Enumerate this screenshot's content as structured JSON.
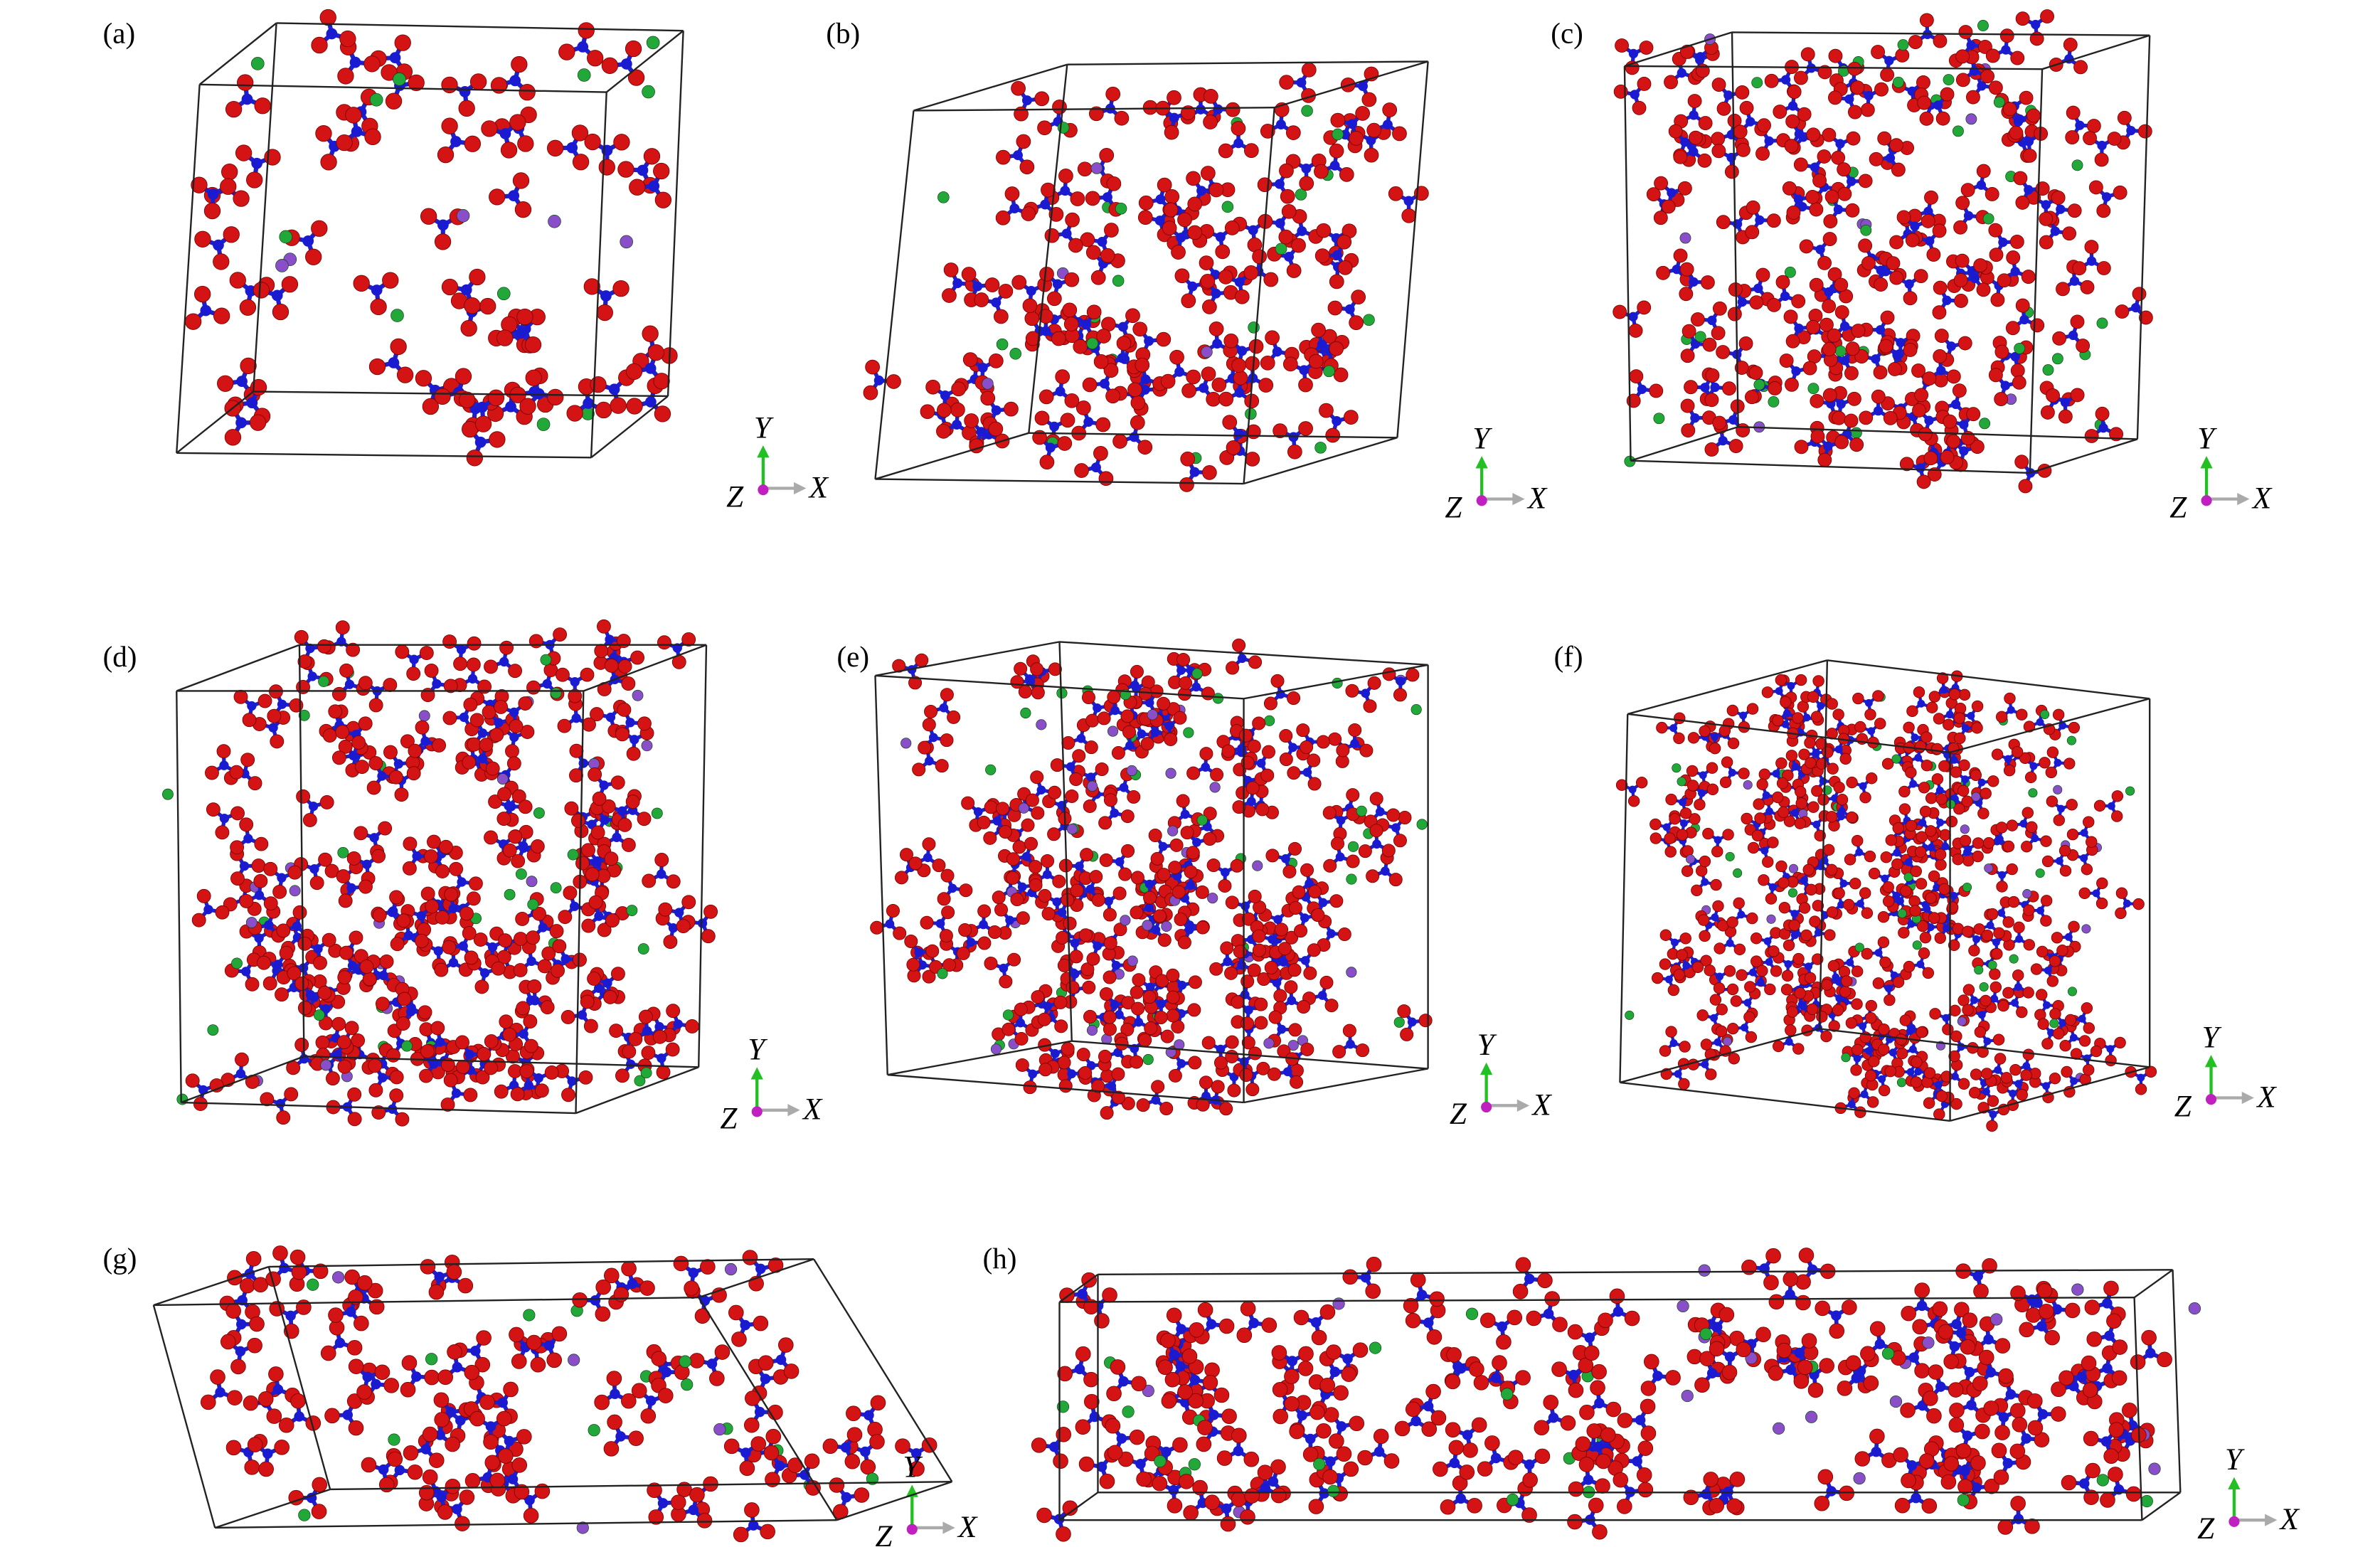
{
  "panels": [
    {
      "label": "(a)",
      "axes": {
        "y": "Y",
        "z": "Z",
        "x": "X"
      }
    },
    {
      "label": "(b)",
      "axes": {
        "y": "Y",
        "z": "Z",
        "x": "X"
      }
    },
    {
      "label": "(c)",
      "axes": {
        "y": "Y",
        "z": "Z",
        "x": "X"
      }
    },
    {
      "label": "(d)",
      "axes": {
        "y": "Y",
        "z": "Z",
        "x": "X"
      }
    },
    {
      "label": "(e)",
      "axes": {
        "y": "Y",
        "z": "Z",
        "x": "X"
      }
    },
    {
      "label": "(f)",
      "axes": {
        "y": "Y",
        "z": "Z",
        "x": "X"
      }
    },
    {
      "label": "(g)",
      "axes": {
        "y": "Y",
        "z": "Z",
        "x": "X"
      }
    },
    {
      "label": "(h)",
      "axes": {
        "y": "Y",
        "z": "Z",
        "x": "X"
      }
    }
  ]
}
